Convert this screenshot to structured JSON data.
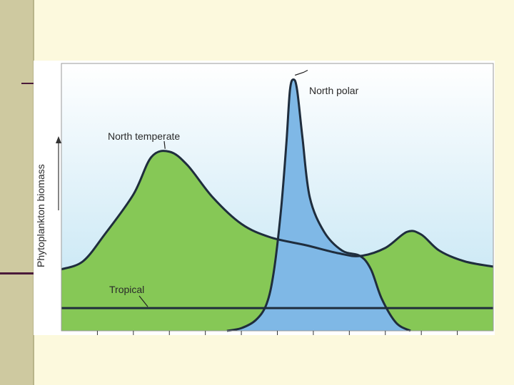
{
  "chart_data": {
    "type": "area",
    "ylabel": "Phytoplankton biomass",
    "xlabel": "",
    "x": [
      0,
      1,
      2,
      3,
      4,
      5,
      6,
      7,
      8,
      9,
      10,
      11,
      12
    ],
    "ylim": [
      0,
      1
    ],
    "grid": false,
    "series": [
      {
        "name": "North polar",
        "color": "#7FB8E6",
        "line_color": "#1F2D3D",
        "points": [
          [
            4.6,
            0
          ],
          [
            5.0,
            0.01
          ],
          [
            5.4,
            0.04
          ],
          [
            5.7,
            0.1
          ],
          [
            5.9,
            0.22
          ],
          [
            6.1,
            0.45
          ],
          [
            6.25,
            0.7
          ],
          [
            6.35,
            0.9
          ],
          [
            6.45,
            0.94
          ],
          [
            6.55,
            0.9
          ],
          [
            6.7,
            0.72
          ],
          [
            6.9,
            0.5
          ],
          [
            7.3,
            0.37
          ],
          [
            7.8,
            0.3
          ],
          [
            8.3,
            0.28
          ],
          [
            8.6,
            0.23
          ],
          [
            8.9,
            0.12
          ],
          [
            9.3,
            0.03
          ],
          [
            9.7,
            0
          ]
        ]
      },
      {
        "name": "North temperate",
        "color": "#86C856",
        "line_color": "#1F2D3D",
        "points": [
          [
            0,
            0.23
          ],
          [
            0.6,
            0.26
          ],
          [
            1.2,
            0.36
          ],
          [
            2.0,
            0.51
          ],
          [
            2.5,
            0.65
          ],
          [
            3.0,
            0.67
          ],
          [
            3.5,
            0.62
          ],
          [
            4.2,
            0.5
          ],
          [
            5.0,
            0.4
          ],
          [
            5.8,
            0.35
          ],
          [
            6.8,
            0.32
          ],
          [
            7.7,
            0.29
          ],
          [
            8.3,
            0.28
          ],
          [
            9.0,
            0.31
          ],
          [
            9.6,
            0.37
          ],
          [
            10.0,
            0.36
          ],
          [
            10.5,
            0.3
          ],
          [
            11.2,
            0.26
          ],
          [
            12,
            0.24
          ]
        ]
      },
      {
        "name": "Tropical",
        "color": "#E9553E",
        "line_color": "#1F2D3D",
        "points": [
          [
            0,
            0.085
          ],
          [
            12,
            0.085
          ]
        ]
      }
    ],
    "annotations": [
      {
        "text": "North polar",
        "target_series": "North polar"
      },
      {
        "text": "North temperate",
        "target_series": "North temperate"
      },
      {
        "text": "Tropical",
        "target_series": "Tropical"
      }
    ]
  },
  "colors": {
    "slide_background": "#FCF9DD",
    "side_band": "#CEC9A0",
    "accent_rule": "#4A1A3A",
    "plot_bg_top": "#FFFFFF",
    "plot_bg_bottom": "#BFE3F3"
  }
}
